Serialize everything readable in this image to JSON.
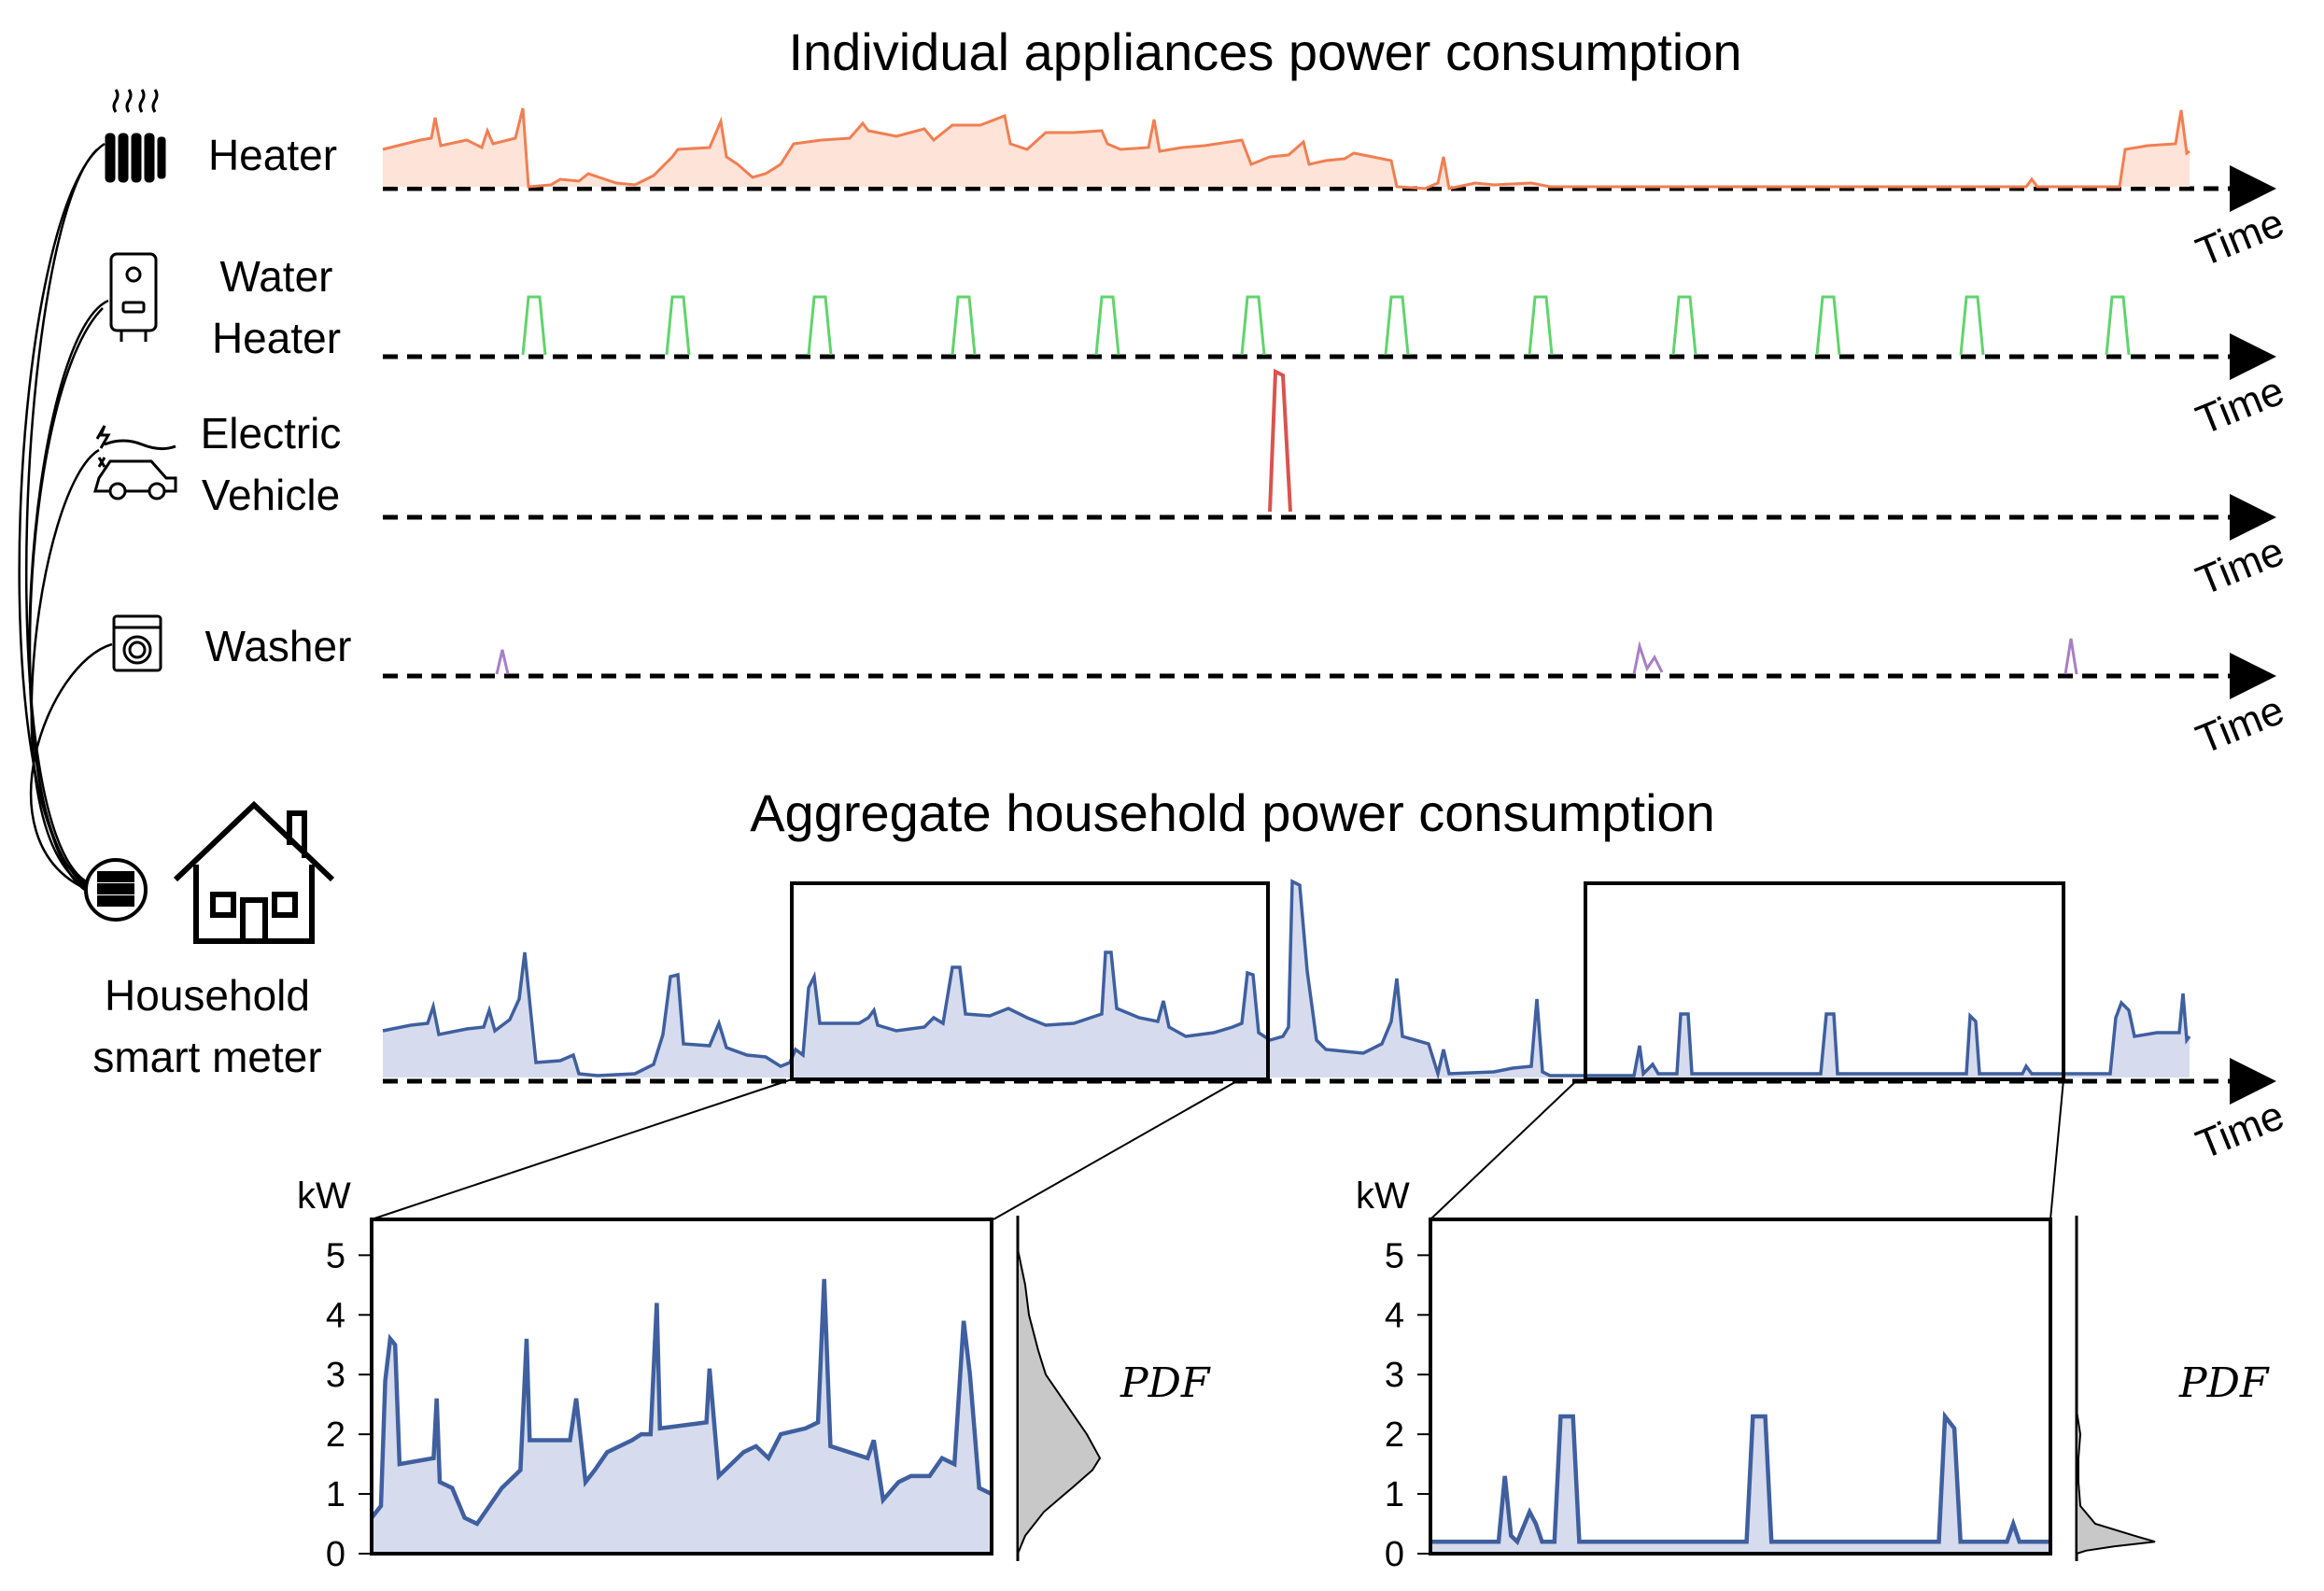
{
  "top_title": "Individual appliances power consumption",
  "aggregate_title": "Aggregate household power consumption",
  "time_label": "Time",
  "appliances": [
    {
      "key": "heater",
      "line1": "Heater",
      "line2": "",
      "color": "#f07f52",
      "fill": "#fde3d8"
    },
    {
      "key": "water",
      "line1": "Water",
      "line2": "Heater",
      "color": "#5fd46b",
      "fill": ""
    },
    {
      "key": "ev",
      "line1": "Electric",
      "line2": "Vehicle",
      "color": "#d9534f",
      "fill": ""
    },
    {
      "key": "washer",
      "line1": "Washer",
      "line2": "",
      "color": "#a87fc4",
      "fill": ""
    }
  ],
  "meter_label_1": "Household",
  "meter_label_2": "smart meter",
  "aggregate_color": "#3f5f9f",
  "aggregate_fill": "#d6dced",
  "zoom": {
    "unit": "kW",
    "ticks": [
      "5",
      "4",
      "3",
      "2",
      "1",
      "0"
    ],
    "pdf_label": "PDF",
    "pdf_fill": "#c8c8c8"
  },
  "icons": [
    "radiator-icon",
    "water-heater-icon",
    "electric-car-icon",
    "washing-machine-icon",
    "smart-meter-icon",
    "house-icon"
  ]
}
